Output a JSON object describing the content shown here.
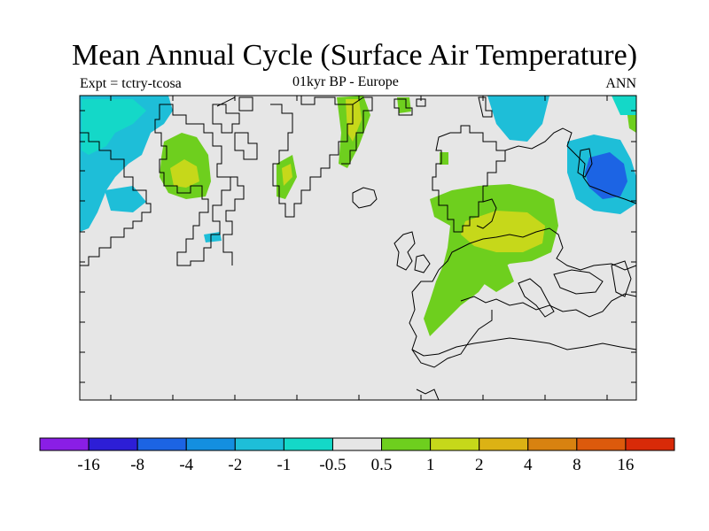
{
  "title": "Mean Annual Cycle (Surface Air Temperature)",
  "experiment": "Expt = tctry-tcosa",
  "period": "01kyr BP - Europe",
  "season": "ANN",
  "colorbar": {
    "colors": [
      "#8a1ee6",
      "#2d1ed6",
      "#1c64e4",
      "#148fe0",
      "#1ebed8",
      "#14d8c8",
      "#e6e6e6",
      "#6ecf1e",
      "#c6d81a",
      "#dcb214",
      "#d88210",
      "#dc5a0c",
      "#d82a08"
    ],
    "labels": [
      "-16",
      "-8",
      "-4",
      "-2",
      "-1",
      "-0.5",
      "0.5",
      "1",
      "2",
      "4",
      "8",
      "16"
    ]
  },
  "map_colors": {
    "background": "#e6e6e6",
    "cyan": "#1ebed8",
    "teal": "#14d8c8",
    "green": "#6ecf1e",
    "yellow": "#c6d81a",
    "blue": "#1c64e4",
    "coast": "#000000"
  }
}
